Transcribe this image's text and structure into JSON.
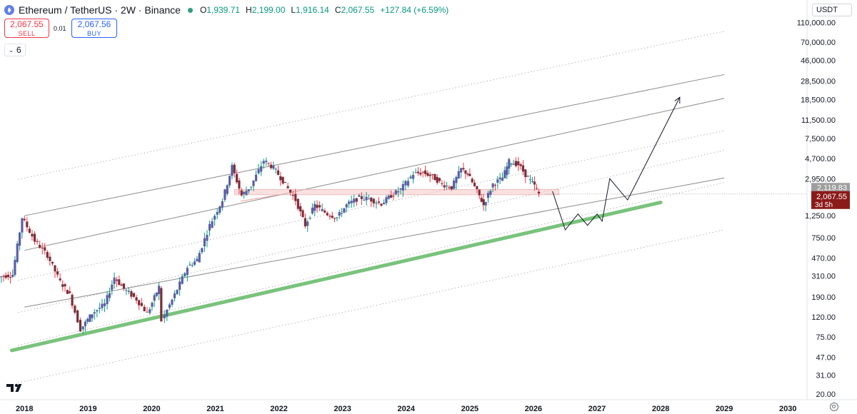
{
  "header": {
    "symbol": "Ethereum / TetherUS · 2W · Binance",
    "open_label": "O",
    "open": "1,939.71",
    "high_label": "H",
    "high": "2,199.00",
    "low_label": "L",
    "low": "1,916.14",
    "close_label": "C",
    "close": "2,067.55",
    "change": "+127.84 (+6.59%)"
  },
  "trade": {
    "sell_price": "2,067.55",
    "sell_label": "SELL",
    "spread": "0.01",
    "buy_price": "2,067.56",
    "buy_label": "BUY"
  },
  "indicator_counter": "6",
  "currency": "USDT",
  "colors": {
    "up": "#089981",
    "down": "#f23645",
    "body_up": "#5b5ea6",
    "body_down": "#7a2f3a",
    "support": "#4caf50",
    "zone": "#f5c6c6"
  },
  "chart_data": {
    "type": "candlestick",
    "y_scale": "log",
    "ylim": [
      17,
      140000
    ],
    "xlim": [
      2017.75,
      2030.3
    ],
    "yticks": [
      "110,000.00",
      "70,000.00",
      "46,000.00",
      "28,500.00",
      "18,500.00",
      "11,500.00",
      "7,500.00",
      "4,700.00",
      "2,950.00",
      "1,250.00",
      "750.00",
      "470.00",
      "310.00",
      "190.00",
      "120.00",
      "75.00",
      "47.00",
      "31.00",
      "20.00"
    ],
    "ytick_values": [
      110000,
      70000,
      46000,
      28500,
      18500,
      11500,
      7500,
      4700,
      2950,
      1250,
      750,
      470,
      310,
      190,
      120,
      75,
      47,
      31,
      20
    ],
    "xticks": [
      "2018",
      "2019",
      "2020",
      "2021",
      "2022",
      "2023",
      "2024",
      "2025",
      "2026",
      "2027",
      "2028",
      "2029",
      "2030"
    ],
    "xtick_values": [
      2018,
      2019,
      2020,
      2021,
      2022,
      2023,
      2024,
      2025,
      2026,
      2027,
      2028,
      2029,
      2030
    ],
    "price_labels": [
      {
        "value": 2119.83,
        "text": "2,119.83"
      },
      {
        "value": 2067.55,
        "text": "2,067.55",
        "countdown": "3d 5h"
      }
    ],
    "anchors": [
      [
        2017.6,
        300
      ],
      [
        2017.85,
        320
      ],
      [
        2018.0,
        1200
      ],
      [
        2018.2,
        700
      ],
      [
        2018.4,
        500
      ],
      [
        2018.6,
        270
      ],
      [
        2018.75,
        200
      ],
      [
        2018.92,
        90
      ],
      [
        2019.1,
        130
      ],
      [
        2019.3,
        160
      ],
      [
        2019.45,
        300
      ],
      [
        2019.6,
        230
      ],
      [
        2019.8,
        180
      ],
      [
        2019.97,
        130
      ],
      [
        2020.15,
        240
      ],
      [
        2020.2,
        110
      ],
      [
        2020.4,
        200
      ],
      [
        2020.6,
        380
      ],
      [
        2020.75,
        450
      ],
      [
        2020.95,
        1000
      ],
      [
        2021.15,
        1800
      ],
      [
        2021.3,
        3900
      ],
      [
        2021.45,
        2000
      ],
      [
        2021.6,
        2500
      ],
      [
        2021.8,
        4500
      ],
      [
        2021.95,
        3800
      ],
      [
        2022.1,
        2800
      ],
      [
        2022.3,
        1800
      ],
      [
        2022.45,
        1000
      ],
      [
        2022.6,
        1600
      ],
      [
        2022.8,
        1300
      ],
      [
        2022.95,
        1200
      ],
      [
        2023.1,
        1600
      ],
      [
        2023.3,
        1900
      ],
      [
        2023.45,
        1850
      ],
      [
        2023.65,
        1650
      ],
      [
        2023.8,
        2000
      ],
      [
        2023.95,
        2300
      ],
      [
        2024.15,
        3300
      ],
      [
        2024.3,
        3400
      ],
      [
        2024.45,
        3100
      ],
      [
        2024.6,
        2600
      ],
      [
        2024.75,
        2400
      ],
      [
        2024.9,
        3700
      ],
      [
        2025.0,
        3300
      ],
      [
        2025.15,
        2200
      ],
      [
        2025.25,
        1600
      ],
      [
        2025.4,
        2600
      ],
      [
        2025.55,
        3000
      ],
      [
        2025.65,
        4400
      ],
      [
        2025.8,
        4100
      ],
      [
        2025.95,
        3000
      ],
      [
        2026.05,
        2500
      ],
      [
        2026.12,
        2067.55
      ]
    ],
    "projection": [
      [
        2026.3,
        2200
      ],
      [
        2026.5,
        900
      ],
      [
        2026.7,
        1300
      ],
      [
        2026.85,
        1000
      ],
      [
        2027.0,
        1300
      ],
      [
        2027.08,
        1100
      ],
      [
        2027.2,
        2950
      ],
      [
        2027.48,
        1800
      ],
      [
        2028.3,
        19500
      ]
    ],
    "channel_lines": [
      {
        "style": "solid",
        "from": [
          2018.0,
          1250
        ],
        "to": [
          2029.0,
          33000
        ]
      },
      {
        "style": "solid",
        "from": [
          2018.0,
          560
        ],
        "to": [
          2029.0,
          19000
        ]
      },
      {
        "style": "solid",
        "from": [
          2018.0,
          150
        ],
        "to": [
          2029.0,
          3000
        ]
      },
      {
        "style": "dotted",
        "from": [
          2017.9,
          2900
        ],
        "to": [
          2029.0,
          90000
        ]
      },
      {
        "style": "dotted",
        "from": [
          2017.9,
          280
        ],
        "to": [
          2029.0,
          9000
        ]
      },
      {
        "style": "dotted",
        "from": [
          2017.9,
          132
        ],
        "to": [
          2029.0,
          5700
        ]
      },
      {
        "style": "dotted",
        "from": [
          2017.9,
          26
        ],
        "to": [
          2029.0,
          900
        ]
      },
      {
        "style": "dotted",
        "from": [
          2017.9,
          62
        ],
        "to": [
          2029.0,
          2700
        ]
      }
    ],
    "support_line": {
      "from": [
        2017.8,
        55
      ],
      "to": [
        2028.0,
        1700
      ]
    },
    "resistance_zone": {
      "x": [
        2021.3,
        2026.4
      ],
      "y": [
        2030,
        2300
      ]
    },
    "diagonal_to_zone": {
      "from": [
        2021.4,
        1750
      ],
      "to": [
        2022.0,
        2030
      ]
    }
  }
}
